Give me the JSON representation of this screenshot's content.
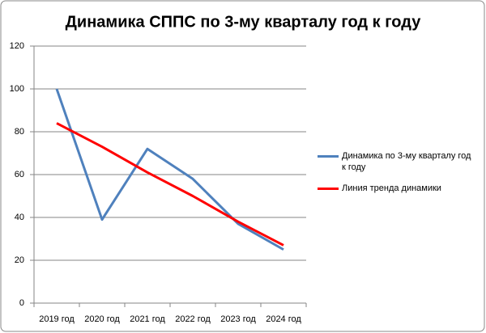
{
  "chart_data": {
    "type": "line",
    "title": "Динамика СППС по 3-му кварталу год к году",
    "categories": [
      "2019 год",
      "2020 год",
      "2021 год",
      "2022 год",
      "2023 год",
      "2024 год"
    ],
    "series": [
      {
        "name": "Динамика по 3-му кварталу год к году",
        "color": "#4f81bd",
        "values": [
          100,
          39,
          72,
          58,
          37,
          25
        ]
      },
      {
        "name": "Линия тренда динамики",
        "color": "#ff0000",
        "values": [
          84,
          73,
          61,
          50,
          38,
          27
        ]
      }
    ],
    "ylim": [
      0,
      120
    ],
    "yticks": [
      0,
      20,
      40,
      60,
      80,
      100,
      120
    ],
    "grid": true,
    "legend": "right"
  }
}
